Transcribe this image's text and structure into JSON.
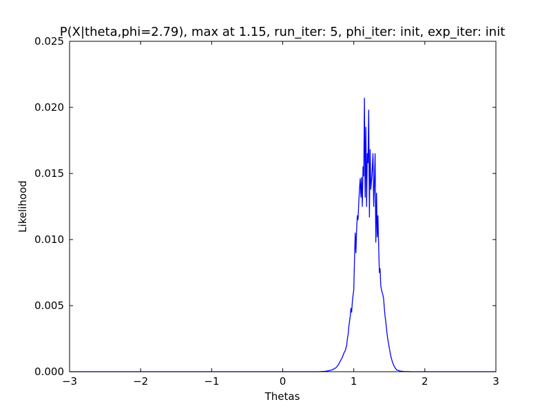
{
  "chart_data": {
    "type": "line",
    "title": "P(X|theta,phi=2.79), max at 1.15, run_iter: 5, phi_iter: init, exp_iter: init",
    "xlabel": "Thetas",
    "ylabel": "Likelihood",
    "xlim": [
      -3,
      3
    ],
    "ylim": [
      0,
      0.025
    ],
    "x_ticks": [
      "−3",
      "−2",
      "−1",
      "0",
      "1",
      "2",
      "3"
    ],
    "x_tick_values": [
      -3,
      -2,
      -1,
      0,
      1,
      2,
      3
    ],
    "y_ticks": [
      "0.000",
      "0.005",
      "0.010",
      "0.015",
      "0.020",
      "0.025"
    ],
    "y_tick_values": [
      0,
      0.005,
      0.01,
      0.015,
      0.02,
      0.025
    ],
    "grid": false,
    "legend": "none",
    "series": [
      {
        "color": "#0000ff",
        "x": [
          -3.0,
          0.5,
          0.6,
          0.65,
          0.7,
          0.75,
          0.78,
          0.8,
          0.82,
          0.84,
          0.86,
          0.88,
          0.9,
          0.91,
          0.92,
          0.93,
          0.94,
          0.95,
          0.96,
          0.97,
          0.98,
          0.99,
          1.0,
          1.01,
          1.02,
          1.03,
          1.04,
          1.05,
          1.06,
          1.07,
          1.08,
          1.09,
          1.1,
          1.11,
          1.12,
          1.13,
          1.14,
          1.15,
          1.16,
          1.17,
          1.18,
          1.19,
          1.2,
          1.21,
          1.22,
          1.23,
          1.24,
          1.25,
          1.26,
          1.27,
          1.28,
          1.29,
          1.3,
          1.31,
          1.32,
          1.33,
          1.34,
          1.35,
          1.36,
          1.37,
          1.38,
          1.39,
          1.4,
          1.41,
          1.42,
          1.43,
          1.44,
          1.45,
          1.46,
          1.47,
          1.48,
          1.5,
          1.52,
          1.54,
          1.56,
          1.58,
          1.6,
          1.65,
          1.7,
          1.75,
          1.8,
          1.9,
          2.0,
          3.0
        ],
        "y": [
          0.0,
          0.0,
          3e-05,
          8e-05,
          0.00015,
          0.0003,
          0.0005,
          0.0007,
          0.0009,
          0.0011,
          0.0014,
          0.0016,
          0.002,
          0.0025,
          0.0028,
          0.0034,
          0.0038,
          0.0042,
          0.0048,
          0.0045,
          0.0053,
          0.0058,
          0.0062,
          0.0085,
          0.0105,
          0.009,
          0.0108,
          0.0118,
          0.0115,
          0.0128,
          0.0138,
          0.0146,
          0.0132,
          0.0147,
          0.0125,
          0.0155,
          0.0148,
          0.0207,
          0.0132,
          0.0185,
          0.0125,
          0.0165,
          0.0158,
          0.0198,
          0.0117,
          0.0168,
          0.0138,
          0.0145,
          0.0153,
          0.0165,
          0.0125,
          0.0143,
          0.0165,
          0.0098,
          0.0135,
          0.0102,
          0.0118,
          0.0095,
          0.0075,
          0.0078,
          0.0065,
          0.0062,
          0.006,
          0.0058,
          0.0055,
          0.0048,
          0.0042,
          0.0038,
          0.0033,
          0.0028,
          0.0024,
          0.0018,
          0.0012,
          0.0008,
          0.0005,
          0.0003,
          0.00015,
          5e-05,
          2e-05,
          1e-05,
          0.0,
          0.0,
          0.0,
          0.0
        ]
      }
    ]
  }
}
